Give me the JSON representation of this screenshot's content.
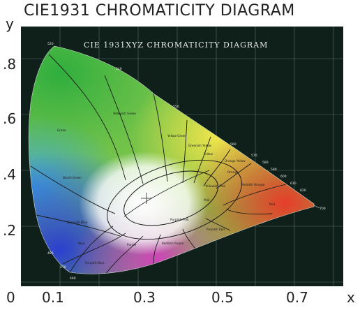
{
  "page_title": "CIE1931 CHROMATICITY DIAGRAM",
  "axes": {
    "y_letter": "y",
    "x_letter": "x",
    "y_ticks": [
      ".8",
      ".6",
      ".4",
      ".2"
    ],
    "x_ticks": [
      "0",
      "0.1",
      "0.3",
      "0.5",
      "0.7"
    ]
  },
  "plate": {
    "heading": "CIE 1931XYZ CHROMATICITY DIAGRAM",
    "wavelength_labels": [
      "520",
      "540",
      "550",
      "560",
      "570",
      "580",
      "590",
      "600",
      "610",
      "620",
      "700",
      "480",
      "470",
      "460"
    ],
    "region_labels": [
      "Yellowish Green",
      "Green",
      "Bluish Green",
      "Yellow Green",
      "Greenish Yellow",
      "Yellow",
      "Orange Yellow",
      "Orange",
      "Reddish Orange",
      "Yellowish Pink",
      "Pink",
      "Red",
      "Greenish Blue",
      "Blue",
      "Purplish Pink",
      "Purple",
      "Purplish Red",
      "Reddish Purple",
      "Purplish Blue"
    ]
  },
  "colors": {
    "plate_background": "#0f1f1a",
    "grid_lines": "#5f6f68",
    "boundary_lines": "#1a1a1a"
  }
}
